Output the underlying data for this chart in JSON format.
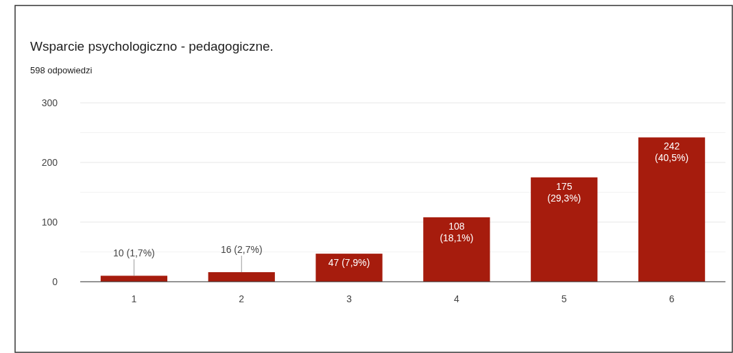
{
  "chart_data": {
    "type": "bar",
    "title": "Wsparcie psychologiczno - pedagogiczne.",
    "subtitle": "598 odpowiedzi",
    "categories": [
      "1",
      "2",
      "3",
      "4",
      "5",
      "6"
    ],
    "values": [
      10,
      16,
      47,
      108,
      175,
      242
    ],
    "value_labels": [
      "10 (1,7%)",
      "16 (2,7%)",
      "47 (7,9%)",
      "108 (18,1%)",
      "175 (29,3%)",
      "242 (40,5%)"
    ],
    "color": "#a61c0d",
    "ylim": [
      0,
      300
    ],
    "yticks": [
      0,
      {
        "value": 50,
        "label": null
      },
      100,
      {
        "value": 150,
        "label": null
      },
      200,
      {
        "value": 250,
        "label": null
      },
      300
    ],
    "grid": true
  }
}
